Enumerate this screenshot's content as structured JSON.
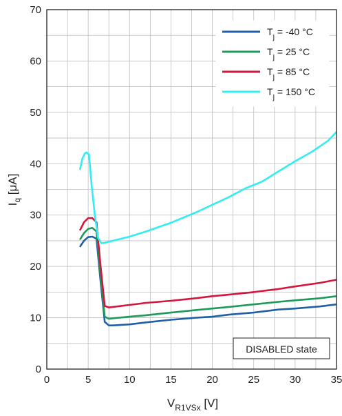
{
  "chart_data": {
    "type": "line",
    "xlim": [
      0,
      35
    ],
    "ylim": [
      0,
      70
    ],
    "x_ticks": [
      0,
      5,
      10,
      15,
      20,
      25,
      30,
      35
    ],
    "y_ticks": [
      0,
      10,
      20,
      30,
      40,
      50,
      60,
      70
    ],
    "grid": true,
    "legend_placement": "top-right",
    "xlabel": {
      "main": "V",
      "sub": "R1VSx",
      "unit": " [V]"
    },
    "ylabel": {
      "main": "I",
      "sub": "q",
      "unit": " [μA]"
    },
    "annotation": "DISABLED state",
    "series": [
      {
        "name_main": "T",
        "name_sub": "j",
        "name_rest": " = -40 °C",
        "color": "#1f5fa8",
        "points": [
          [
            4,
            23.8
          ],
          [
            4.5,
            25
          ],
          [
            5,
            25.7
          ],
          [
            5.5,
            25.8
          ],
          [
            6,
            25.4
          ],
          [
            6.5,
            17
          ],
          [
            7,
            9.2
          ],
          [
            7.5,
            8.5
          ],
          [
            8,
            8.5
          ],
          [
            10,
            8.7
          ],
          [
            12,
            9.1
          ],
          [
            15,
            9.6
          ],
          [
            18,
            10
          ],
          [
            20,
            10.2
          ],
          [
            22,
            10.6
          ],
          [
            25,
            11
          ],
          [
            28,
            11.6
          ],
          [
            30,
            11.8
          ],
          [
            33,
            12.2
          ],
          [
            35,
            12.6
          ]
        ]
      },
      {
        "name_main": "T",
        "name_sub": "j",
        "name_rest": " = 25 °C",
        "color": "#1c9a5a",
        "points": [
          [
            4,
            25.2
          ],
          [
            4.5,
            26.5
          ],
          [
            5,
            27.3
          ],
          [
            5.5,
            27.5
          ],
          [
            6,
            26.8
          ],
          [
            6.5,
            18
          ],
          [
            7,
            10.2
          ],
          [
            7.5,
            9.8
          ],
          [
            8,
            9.9
          ],
          [
            10,
            10.2
          ],
          [
            12,
            10.5
          ],
          [
            15,
            11
          ],
          [
            18,
            11.5
          ],
          [
            20,
            11.8
          ],
          [
            22,
            12.1
          ],
          [
            25,
            12.6
          ],
          [
            28,
            13.1
          ],
          [
            30,
            13.4
          ],
          [
            33,
            13.8
          ],
          [
            35,
            14.2
          ]
        ]
      },
      {
        "name_main": "T",
        "name_sub": "j",
        "name_rest": " = 85 °C",
        "color": "#d4163c",
        "points": [
          [
            4,
            27
          ],
          [
            4.5,
            28.6
          ],
          [
            5,
            29.4
          ],
          [
            5.5,
            29.4
          ],
          [
            6,
            28.6
          ],
          [
            6.5,
            20
          ],
          [
            7,
            12.3
          ],
          [
            7.5,
            12
          ],
          [
            8,
            12.1
          ],
          [
            10,
            12.5
          ],
          [
            12,
            12.9
          ],
          [
            15,
            13.3
          ],
          [
            18,
            13.8
          ],
          [
            20,
            14.2
          ],
          [
            22,
            14.5
          ],
          [
            25,
            15
          ],
          [
            28,
            15.6
          ],
          [
            30,
            16.1
          ],
          [
            33,
            16.8
          ],
          [
            35,
            17.4
          ]
        ]
      },
      {
        "name_main": "T",
        "name_sub": "j",
        "name_rest": " = 150 °C",
        "color": "#33eef0",
        "points": [
          [
            4,
            38.8
          ],
          [
            4.3,
            41
          ],
          [
            4.6,
            42
          ],
          [
            4.8,
            42.2
          ],
          [
            5.1,
            41.8
          ],
          [
            5.4,
            36
          ],
          [
            5.8,
            30
          ],
          [
            6.2,
            25.5
          ],
          [
            6.6,
            24.5
          ],
          [
            7,
            24.6
          ],
          [
            7.5,
            24.8
          ],
          [
            10,
            25.8
          ],
          [
            12,
            26.8
          ],
          [
            15,
            28.5
          ],
          [
            18,
            30.5
          ],
          [
            20,
            32
          ],
          [
            22,
            33.5
          ],
          [
            24,
            35.2
          ],
          [
            26,
            36.5
          ],
          [
            28,
            38.5
          ],
          [
            30,
            40.5
          ],
          [
            32,
            42.3
          ],
          [
            34,
            44.5
          ],
          [
            35,
            46.2
          ]
        ]
      }
    ]
  }
}
